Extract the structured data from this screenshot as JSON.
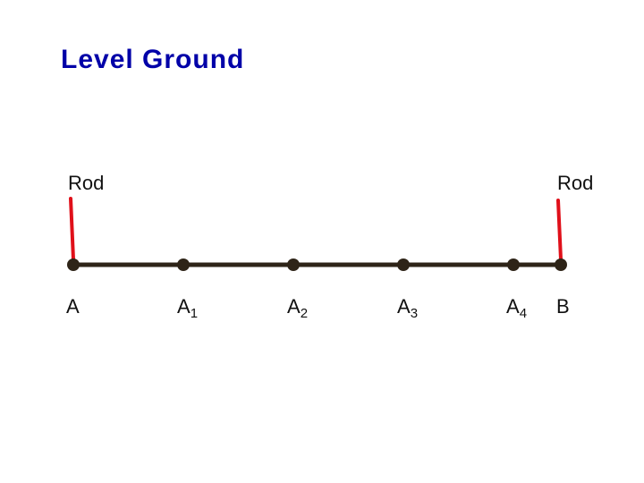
{
  "title": "Level Ground",
  "rods": {
    "left_label": "Rod",
    "right_label": "Rod",
    "color": "#e0101a"
  },
  "line_color": "#2e2418",
  "points": [
    {
      "base": "A",
      "sub": ""
    },
    {
      "base": "A",
      "sub": "1"
    },
    {
      "base": "A",
      "sub": "2"
    },
    {
      "base": "A",
      "sub": "3"
    },
    {
      "base": "A",
      "sub": "4"
    },
    {
      "base": "B",
      "sub": ""
    }
  ]
}
